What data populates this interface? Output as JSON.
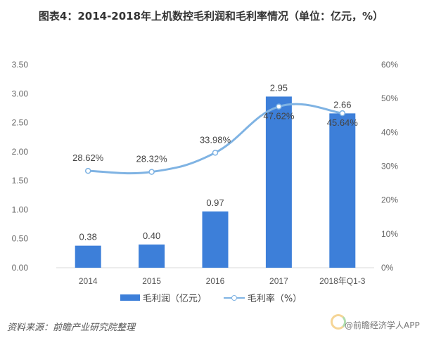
{
  "title": "图表4：2014-2018年上机数控毛利润和毛利率情况（单位：亿元，%）",
  "colors": {
    "bar": "#3d7fd9",
    "line": "#7fb3e3",
    "axis": "#d9d9d9"
  },
  "chart_data": {
    "type": "bar+line",
    "title": "图表4：2014-2018年上机数控毛利润和毛利率情况（单位：亿元，%）",
    "categories": [
      "2014",
      "2015",
      "2016",
      "2017",
      "2018年Q1-3"
    ],
    "series": [
      {
        "name": "毛利润（亿元）",
        "type": "bar",
        "axis": "left",
        "values": [
          0.38,
          0.4,
          0.97,
          2.95,
          2.66
        ],
        "labels": [
          "0.38",
          "0.40",
          "0.97",
          "2.95",
          "2.66"
        ]
      },
      {
        "name": "毛利率（%）",
        "type": "line",
        "axis": "right",
        "values": [
          28.62,
          28.32,
          33.98,
          47.62,
          45.64
        ],
        "labels": [
          "28.62%",
          "28.32%",
          "33.98%",
          "47.62%",
          "45.64%"
        ]
      }
    ],
    "y_left": {
      "ylim": [
        0,
        3.5
      ],
      "ticks": [
        "0.00",
        "0.50",
        "1.00",
        "1.50",
        "2.00",
        "2.50",
        "3.00",
        "3.50"
      ]
    },
    "y_right": {
      "ylim": [
        0,
        60
      ],
      "ticks": [
        "0%",
        "10%",
        "20%",
        "30%",
        "40%",
        "50%",
        "60%"
      ]
    },
    "legend": [
      "毛利润（亿元）",
      "毛利率（%）"
    ],
    "legend_position": "bottom",
    "grid": false
  },
  "source": "资料来源：前瞻产业研究院整理",
  "logo_text": "@前瞻经济学人APP"
}
